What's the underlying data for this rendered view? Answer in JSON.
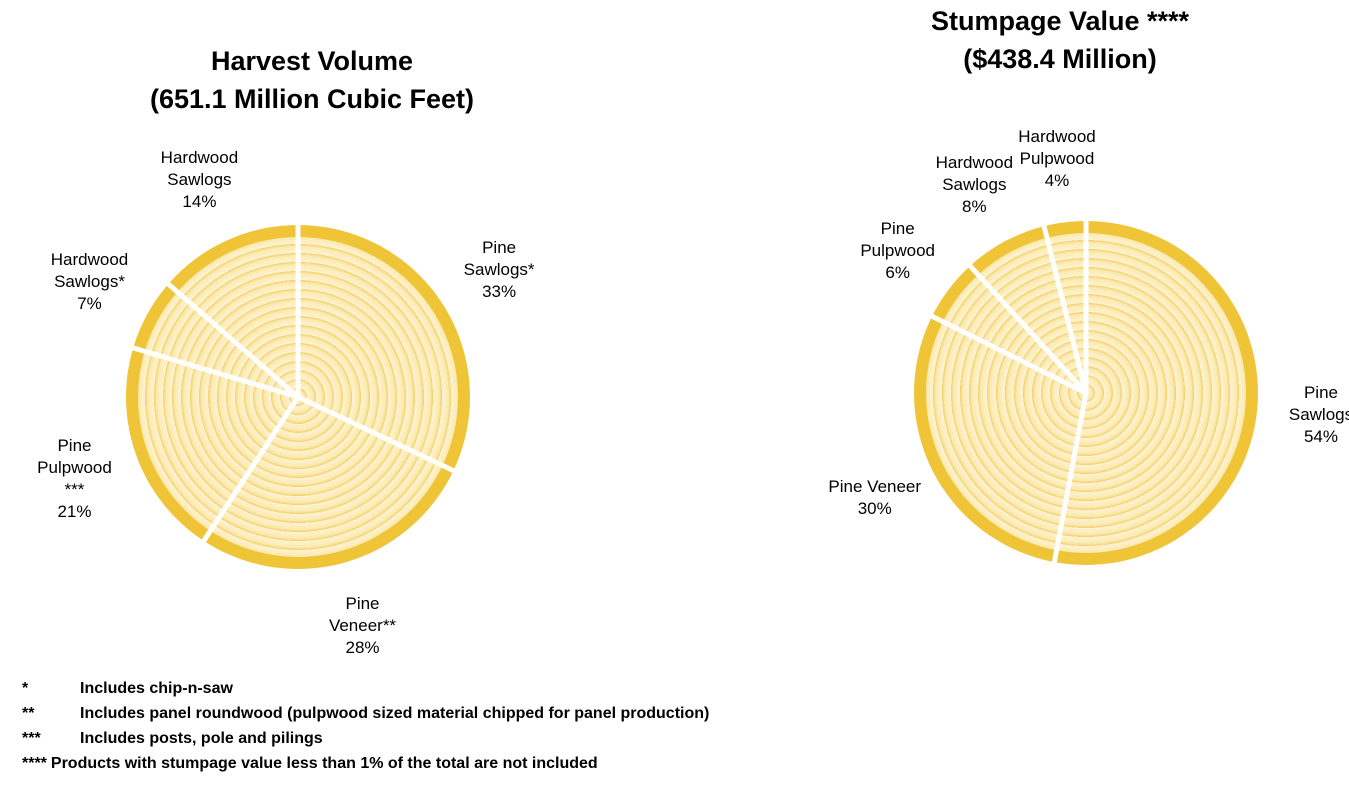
{
  "chart_data": [
    {
      "type": "pie",
      "title": "Harvest Volume\n(651.1 Million Cubic Feet)",
      "categories": [
        "Pine\nSawlogs*",
        "Pine\nVeneer**",
        "Pine\nPulpwood\n***",
        "Hardwood\nSawlogs*",
        "Hardwood\nSawlogs"
      ],
      "values": [
        33,
        28,
        21,
        7,
        14
      ],
      "value_labels": [
        "33%",
        "28%",
        "21%",
        "7%",
        "14%"
      ],
      "color": "#f0c437"
    },
    {
      "type": "pie",
      "title": "Stumpage Value ****\n($438.4 Million)",
      "categories": [
        "Pine\nSawlogs",
        "Pine Veneer",
        "Pine\nPulpwood",
        "Hardwood\nSawlogs",
        "Hardwood\nPulpwood"
      ],
      "values": [
        54,
        30,
        6,
        8,
        4
      ],
      "value_labels": [
        "54%",
        "30%",
        "6%",
        "8%",
        "4%"
      ],
      "color": "#f0c437"
    }
  ],
  "footnotes": [
    {
      "marker": "*",
      "text": "Includes chip-n-saw"
    },
    {
      "marker": "**",
      "text": "Includes panel roundwood (pulpwood sized material chipped for panel production)"
    },
    {
      "marker": "***",
      "text": "Includes posts, pole and pilings"
    },
    {
      "marker": "****",
      "text": "Products with stumpage value less than 1% of the total are not included"
    }
  ]
}
